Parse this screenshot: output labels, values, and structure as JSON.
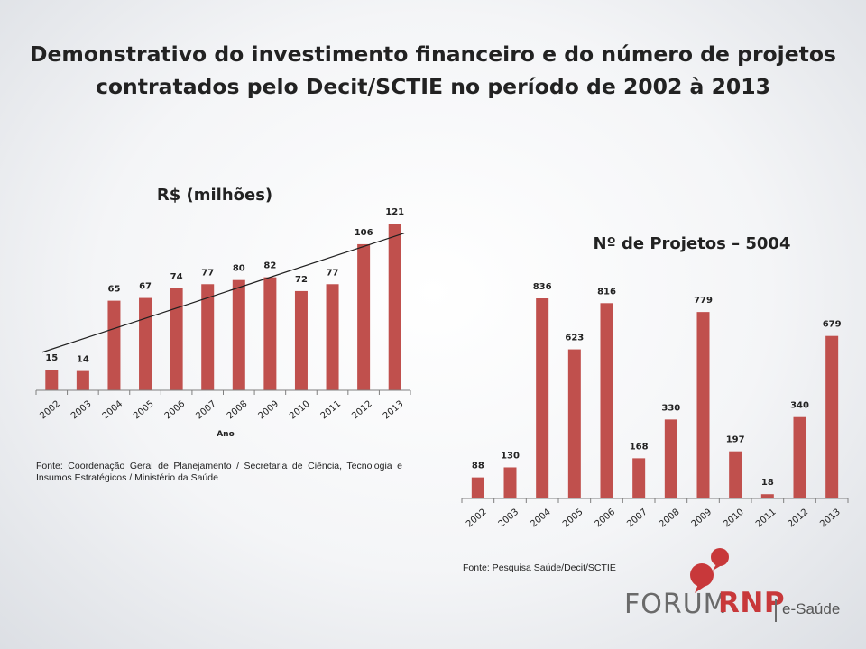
{
  "slide": {
    "title": "Demonstrativo do investimento financeiro e do número de projetos contratados pelo Decit/SCTIE no período de 2002 à 2013"
  },
  "colors": {
    "bar": "#c0504d",
    "axis": "#7f7f7f",
    "trend": "#1f1f1f"
  },
  "chart_data": [
    {
      "type": "bar",
      "title": "R$ (milhões)",
      "xlabel": "Ano",
      "ylabel": "",
      "categories": [
        "2002",
        "2003",
        "2004",
        "2005",
        "2006",
        "2007",
        "2008",
        "2009",
        "2010",
        "2011",
        "2012",
        "2013"
      ],
      "values": [
        15,
        14,
        65,
        67,
        74,
        77,
        80,
        82,
        72,
        77,
        106,
        121
      ],
      "ylim": [
        0,
        121
      ],
      "trendline": true,
      "grid": false,
      "legend": "none"
    },
    {
      "type": "bar",
      "title": "Nº de Projetos – 5004",
      "xlabel": "",
      "ylabel": "",
      "categories": [
        "2002",
        "2003",
        "2004",
        "2005",
        "2006",
        "2007",
        "2008",
        "2009",
        "2010",
        "2011",
        "2012",
        "2013"
      ],
      "values": [
        88,
        130,
        836,
        623,
        816,
        168,
        330,
        779,
        197,
        18,
        340,
        679
      ],
      "ylim": [
        0,
        836
      ],
      "trendline": false,
      "grid": false,
      "legend": "none"
    }
  ],
  "sources": {
    "left": "Fonte: Coordenação Geral de Planejamento / Secretaria de Ciência, Tecnologia e Insumos Estratégicos / Ministério da Saúde",
    "right": "Fonte: Pesquisa Saúde/Decit/SCTIE"
  },
  "logo": {
    "brand": "FORUM",
    "accent": "RNP",
    "product": "e-Saúde"
  }
}
